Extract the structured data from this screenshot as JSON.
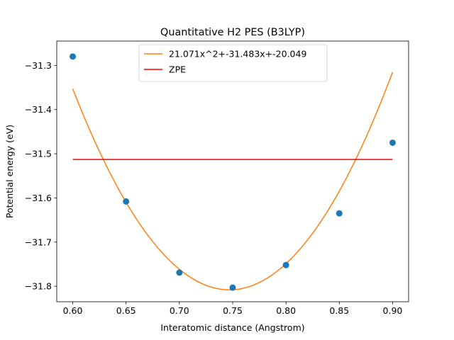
{
  "chart_data": {
    "type": "scatter",
    "title": "Quantitative H2 PES (B3LYP)",
    "xlabel": "Interatomic distance (Angstrom)",
    "ylabel": "Potential energy (eV)",
    "xlim": [
      0.585,
      0.915
    ],
    "ylim": [
      -31.835,
      -31.245
    ],
    "xticks": [
      0.6,
      0.65,
      0.7,
      0.75,
      0.8,
      0.85,
      0.9
    ],
    "xtick_labels": [
      "0.60",
      "0.65",
      "0.70",
      "0.75",
      "0.80",
      "0.85",
      "0.90"
    ],
    "yticks": [
      -31.3,
      -31.4,
      -31.5,
      -31.6,
      -31.7,
      -31.8
    ],
    "ytick_labels": [
      "−31.3",
      "−31.4",
      "−31.5",
      "−31.6",
      "−31.7",
      "−31.8"
    ],
    "grid": false,
    "legend_position": "top-center",
    "series": [
      {
        "kind": "points",
        "color": "#1f77b4",
        "x": [
          0.6,
          0.65,
          0.7,
          0.75,
          0.8,
          0.85,
          0.9
        ],
        "y": [
          -31.28,
          -31.608,
          -31.769,
          -31.803,
          -31.752,
          -31.635,
          -31.475
        ]
      },
      {
        "kind": "curve",
        "name": "21.071x^2+-31.483x+-20.049",
        "color": "#ff7f0e",
        "x_range": [
          0.6,
          0.9
        ],
        "vertex": [
          0.747,
          -31.808
        ],
        "y_at_ends": [
          -31.353,
          -31.315
        ]
      },
      {
        "kind": "hline",
        "name": "ZPE",
        "color": "#ff0000",
        "x_range": [
          0.6,
          0.9
        ],
        "y": -31.513
      }
    ]
  }
}
